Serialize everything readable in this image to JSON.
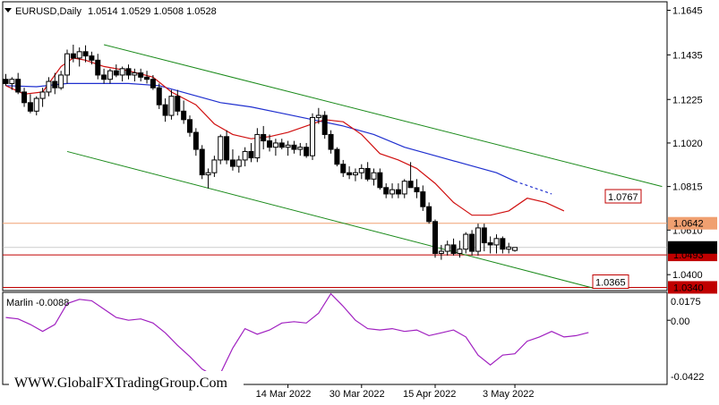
{
  "header": {
    "symbol_label": "EURUSD,Daily",
    "ohlc": "1.0514 1.0529 1.0508 1.0528"
  },
  "indicator": {
    "label": "Marlin -0.0088",
    "color": "#a020c0",
    "axis_labels": [
      "0.0175",
      "0.00",
      "-0.0422"
    ]
  },
  "watermark": "WWW.GlobalFXTradingGroup.Com",
  "colors": {
    "bull": "#ffffff",
    "bear": "#000000",
    "ma_fast": "#d01010",
    "ma_slow": "#1f2fcf",
    "channel": "#1a8a1a",
    "level_orange": "#f0a070",
    "level_red": "#c00000",
    "label_bg": "#c00000"
  },
  "chart_data": [
    {
      "type": "candlestick",
      "title": "EURUSD,Daily",
      "ylim": [
        1.0325,
        1.1685
      ],
      "y_ticks": [
        1.1645,
        1.1435,
        1.1225,
        1.102,
        1.0815,
        1.061,
        1.04
      ],
      "x_tick_labels": [
        "14 Mar 2022",
        "30 Mar 2022",
        "15 Apr 2022",
        "3 May 2022"
      ],
      "x_tick_bars": [
        46,
        58,
        70,
        83
      ],
      "candles": [
        [
          1.132,
          1.1345,
          1.129,
          1.13
        ],
        [
          1.13,
          1.133,
          1.127,
          1.132
        ],
        [
          1.132,
          1.135,
          1.125,
          1.126
        ],
        [
          1.126,
          1.128,
          1.119,
          1.121
        ],
        [
          1.121,
          1.125,
          1.116,
          1.117
        ],
        [
          1.117,
          1.124,
          1.115,
          1.123
        ],
        [
          1.123,
          1.128,
          1.119,
          1.126
        ],
        [
          1.126,
          1.133,
          1.124,
          1.131
        ],
        [
          1.131,
          1.135,
          1.125,
          1.128
        ],
        [
          1.128,
          1.136,
          1.127,
          1.134
        ],
        [
          1.134,
          1.146,
          1.13,
          1.144
        ],
        [
          1.144,
          1.1483,
          1.14,
          1.142
        ],
        [
          1.142,
          1.147,
          1.138,
          1.145
        ],
        [
          1.145,
          1.148,
          1.14,
          1.143
        ],
        [
          1.143,
          1.145,
          1.139,
          1.141
        ],
        [
          1.141,
          1.144,
          1.132,
          1.134
        ],
        [
          1.134,
          1.137,
          1.13,
          1.132
        ],
        [
          1.132,
          1.137,
          1.13,
          1.136
        ],
        [
          1.136,
          1.139,
          1.133,
          1.134
        ],
        [
          1.134,
          1.138,
          1.131,
          1.137
        ],
        [
          1.137,
          1.139,
          1.132,
          1.134
        ],
        [
          1.134,
          1.137,
          1.131,
          1.135
        ],
        [
          1.135,
          1.137,
          1.131,
          1.133
        ],
        [
          1.133,
          1.136,
          1.13,
          1.132
        ],
        [
          1.132,
          1.134,
          1.127,
          1.128
        ],
        [
          1.128,
          1.13,
          1.118,
          1.12
        ],
        [
          1.12,
          1.123,
          1.112,
          1.115
        ],
        [
          1.115,
          1.127,
          1.113,
          1.124
        ],
        [
          1.124,
          1.127,
          1.115,
          1.117
        ],
        [
          1.117,
          1.122,
          1.111,
          1.113
        ],
        [
          1.113,
          1.115,
          1.105,
          1.107
        ],
        [
          1.107,
          1.109,
          1.096,
          1.099
        ],
        [
          1.099,
          1.101,
          1.085,
          1.087
        ],
        [
          1.087,
          1.09,
          1.0806,
          1.088
        ],
        [
          1.088,
          1.096,
          1.086,
          1.094
        ],
        [
          1.094,
          1.106,
          1.092,
          1.105
        ],
        [
          1.105,
          1.108,
          1.092,
          1.094
        ],
        [
          1.094,
          1.099,
          1.089,
          1.091
        ],
        [
          1.091,
          1.096,
          1.088,
          1.094
        ],
        [
          1.094,
          1.1,
          1.091,
          1.098
        ],
        [
          1.098,
          1.102,
          1.093,
          1.095
        ],
        [
          1.095,
          1.109,
          1.093,
          1.106
        ],
        [
          1.106,
          1.11,
          1.099,
          1.103
        ],
        [
          1.103,
          1.106,
          1.098,
          1.1
        ],
        [
          1.1,
          1.104,
          1.096,
          1.102
        ],
        [
          1.102,
          1.104,
          1.099,
          1.1
        ],
        [
          1.1,
          1.103,
          1.096,
          1.101
        ],
        [
          1.101,
          1.103,
          1.097,
          1.099
        ],
        [
          1.099,
          1.102,
          1.096,
          1.1
        ],
        [
          1.1,
          1.102,
          1.095,
          1.096
        ],
        [
          1.096,
          1.116,
          1.094,
          1.114
        ],
        [
          1.114,
          1.1185,
          1.111,
          1.115
        ],
        [
          1.115,
          1.117,
          1.104,
          1.106
        ],
        [
          1.106,
          1.108,
          1.097,
          1.099
        ],
        [
          1.099,
          1.1,
          1.091,
          1.092
        ],
        [
          1.092,
          1.094,
          1.086,
          1.088
        ],
        [
          1.088,
          1.091,
          1.085,
          1.087
        ],
        [
          1.087,
          1.09,
          1.084,
          1.088
        ],
        [
          1.088,
          1.092,
          1.085,
          1.09
        ],
        [
          1.09,
          1.093,
          1.084,
          1.085
        ],
        [
          1.085,
          1.09,
          1.082,
          1.088
        ],
        [
          1.088,
          1.09,
          1.08,
          1.081
        ],
        [
          1.081,
          1.083,
          1.076,
          1.078
        ],
        [
          1.078,
          1.083,
          1.076,
          1.08
        ],
        [
          1.08,
          1.083,
          1.076,
          1.078
        ],
        [
          1.078,
          1.085,
          1.076,
          1.084
        ],
        [
          1.084,
          1.093,
          1.082,
          1.081
        ],
        [
          1.081,
          1.085,
          1.076,
          1.079
        ],
        [
          1.079,
          1.082,
          1.07,
          1.072
        ],
        [
          1.072,
          1.074,
          1.064,
          1.065
        ],
        [
          1.065,
          1.066,
          1.048,
          1.05
        ],
        [
          1.05,
          1.054,
          1.047,
          1.051
        ],
        [
          1.051,
          1.056,
          1.049,
          1.054
        ],
        [
          1.054,
          1.057,
          1.049,
          1.05
        ],
        [
          1.05,
          1.056,
          1.048,
          1.052
        ],
        [
          1.052,
          1.06,
          1.05,
          1.059
        ],
        [
          1.059,
          1.061,
          1.049,
          1.051
        ],
        [
          1.051,
          1.064,
          1.049,
          1.062
        ],
        [
          1.062,
          1.064,
          1.051,
          1.055
        ],
        [
          1.055,
          1.058,
          1.05,
          1.054
        ],
        [
          1.054,
          1.059,
          1.05,
          1.057
        ],
        [
          1.057,
          1.058,
          1.05,
          1.052
        ],
        [
          1.052,
          1.055,
          1.05,
          1.053
        ],
        [
          1.0514,
          1.0529,
          1.0508,
          1.0528
        ]
      ],
      "ma_fast": [
        [
          0,
          1.129
        ],
        [
          3,
          1.125
        ],
        [
          6,
          1.126
        ],
        [
          9,
          1.138
        ],
        [
          11,
          1.142
        ],
        [
          13,
          1.141
        ],
        [
          16,
          1.138
        ],
        [
          20,
          1.136
        ],
        [
          24,
          1.133
        ],
        [
          27,
          1.126
        ],
        [
          31,
          1.12
        ],
        [
          34,
          1.111
        ],
        [
          37,
          1.106
        ],
        [
          40,
          1.104
        ],
        [
          43,
          1.105
        ],
        [
          46,
          1.107
        ],
        [
          49,
          1.11
        ],
        [
          52,
          1.113
        ],
        [
          55,
          1.112
        ],
        [
          58,
          1.106
        ],
        [
          61,
          1.097
        ],
        [
          64,
          1.094
        ],
        [
          67,
          1.09
        ],
        [
          70,
          1.083
        ],
        [
          73,
          1.074
        ],
        [
          76,
          1.068
        ],
        [
          79,
          1.068
        ],
        [
          82,
          1.07
        ],
        [
          85,
          1.076
        ],
        [
          88,
          1.074
        ],
        [
          91,
          1.07
        ]
      ],
      "ma_slow": [
        [
          0,
          1.129
        ],
        [
          5,
          1.1285
        ],
        [
          10,
          1.13
        ],
        [
          15,
          1.13
        ],
        [
          20,
          1.13
        ],
        [
          25,
          1.129
        ],
        [
          30,
          1.125
        ],
        [
          35,
          1.121
        ],
        [
          40,
          1.119
        ],
        [
          45,
          1.116
        ],
        [
          50,
          1.113
        ],
        [
          55,
          1.11
        ],
        [
          60,
          1.106
        ],
        [
          65,
          1.1
        ],
        [
          70,
          1.096
        ],
        [
          75,
          1.092
        ],
        [
          80,
          1.088
        ],
        [
          83,
          1.084
        ]
      ],
      "ma_slow_dashed": [
        [
          83,
          1.084
        ],
        [
          86,
          1.081
        ],
        [
          89,
          1.078
        ]
      ],
      "channel_upper": [
        [
          16,
          1.1483
        ],
        [
          107,
          1.0815
        ]
      ],
      "channel_lower": [
        [
          10,
          1.098
        ],
        [
          96,
          1.0335
        ]
      ],
      "levels": [
        {
          "value": 1.0642,
          "label": "1.0642",
          "color": "orange"
        },
        {
          "value": 1.0493,
          "label": "1.0493",
          "color": "red"
        },
        {
          "value": 1.034,
          "label": "1.0340",
          "color": "red"
        }
      ],
      "tags": [
        {
          "value": 1.0767,
          "label": "1.0767"
        },
        {
          "value": 1.0365,
          "label": "1.0365"
        }
      ],
      "current_price": {
        "value": 1.0528,
        "label": "1.0528"
      }
    },
    {
      "type": "line",
      "name": "Marlin",
      "ylim": [
        -0.046,
        0.02
      ],
      "y_ticks": [
        0.0175,
        0.0,
        -0.0422
      ],
      "values": [
        [
          0,
          0.002
        ],
        [
          2,
          0.001
        ],
        [
          4,
          -0.003
        ],
        [
          6,
          -0.008
        ],
        [
          8,
          -0.003
        ],
        [
          10,
          0.012
        ],
        [
          12,
          0.015
        ],
        [
          14,
          0.014
        ],
        [
          16,
          0.008
        ],
        [
          18,
          0.002
        ],
        [
          20,
          0.0
        ],
        [
          22,
          0.001
        ],
        [
          24,
          -0.002
        ],
        [
          26,
          -0.009
        ],
        [
          28,
          -0.018
        ],
        [
          30,
          -0.026
        ],
        [
          32,
          -0.035
        ],
        [
          34,
          -0.04
        ],
        [
          35,
          -0.038
        ],
        [
          37,
          -0.02
        ],
        [
          39,
          -0.006
        ],
        [
          41,
          -0.01
        ],
        [
          43,
          -0.007
        ],
        [
          45,
          -0.002
        ],
        [
          47,
          -0.001
        ],
        [
          49,
          -0.002
        ],
        [
          51,
          0.005
        ],
        [
          53,
          0.019
        ],
        [
          55,
          0.01
        ],
        [
          57,
          0.0
        ],
        [
          59,
          -0.006
        ],
        [
          61,
          -0.007
        ],
        [
          63,
          -0.006
        ],
        [
          65,
          -0.008
        ],
        [
          67,
          -0.007
        ],
        [
          69,
          -0.011
        ],
        [
          71,
          -0.009
        ],
        [
          73,
          -0.007
        ],
        [
          75,
          -0.012
        ],
        [
          77,
          -0.025
        ],
        [
          79,
          -0.032
        ],
        [
          81,
          -0.025
        ],
        [
          83,
          -0.024
        ],
        [
          85,
          -0.015
        ],
        [
          87,
          -0.012
        ],
        [
          89,
          -0.008
        ],
        [
          91,
          -0.012
        ],
        [
          93,
          -0.011
        ],
        [
          95,
          -0.0088
        ]
      ]
    }
  ]
}
